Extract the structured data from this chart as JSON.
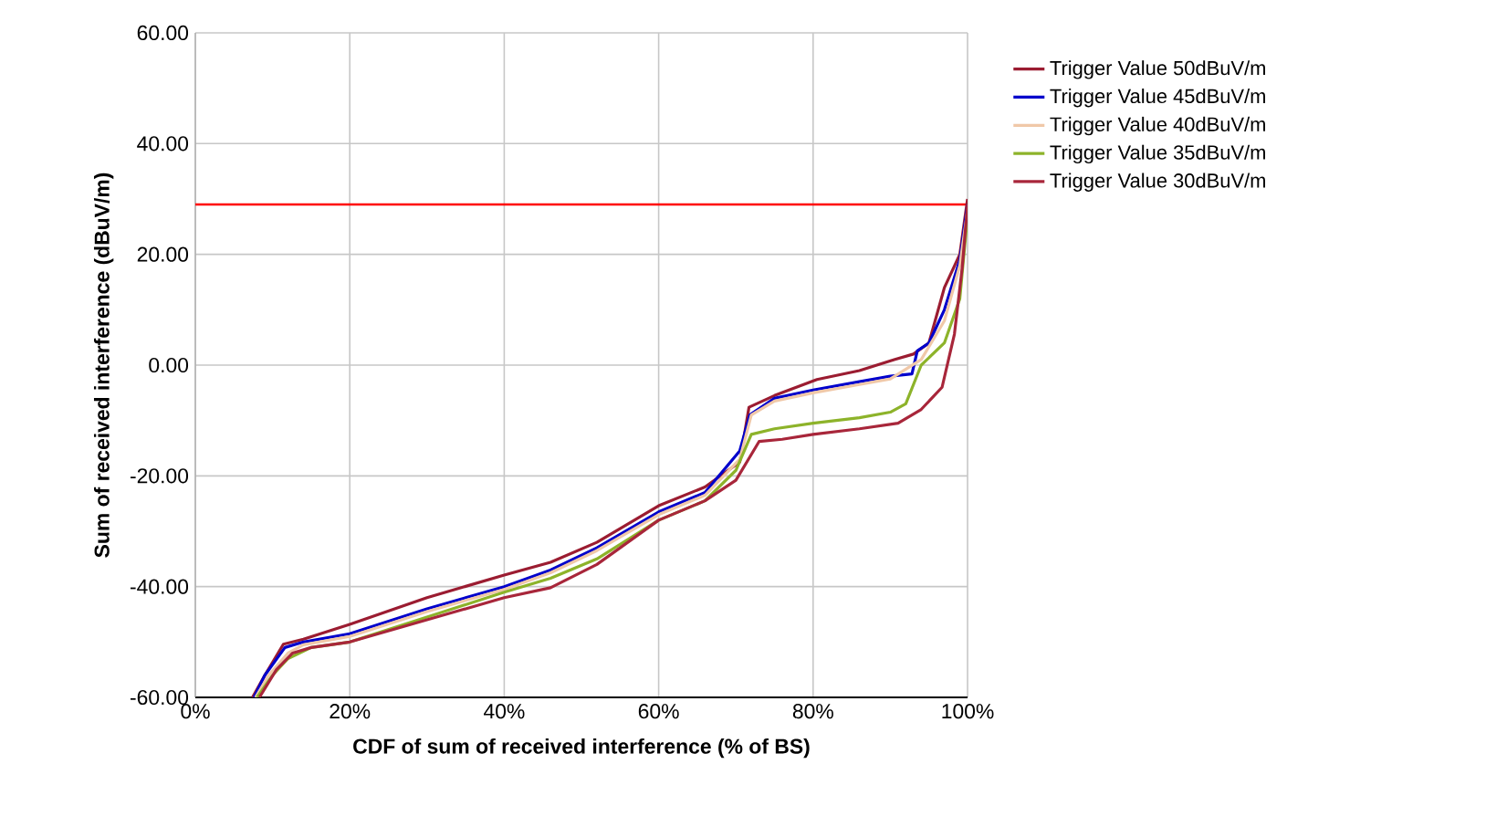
{
  "chart_data": {
    "type": "line",
    "xlabel": "CDF of sum of received interference (% of BS)",
    "ylabel": "Sum of received interference (dBuV/m)",
    "xlim": [
      0,
      100
    ],
    "ylim": [
      -60,
      60
    ],
    "xticks": [
      {
        "value": 0,
        "label": "0%"
      },
      {
        "value": 20,
        "label": "20%"
      },
      {
        "value": 40,
        "label": "40%"
      },
      {
        "value": 60,
        "label": "60%"
      },
      {
        "value": 80,
        "label": "80%"
      },
      {
        "value": 100,
        "label": "100%"
      }
    ],
    "yticks": [
      {
        "value": -60,
        "label": "-60.00"
      },
      {
        "value": -40,
        "label": "-40.00"
      },
      {
        "value": -20,
        "label": "-20.00"
      },
      {
        "value": 0,
        "label": "0.00"
      },
      {
        "value": 20,
        "label": "20.00"
      },
      {
        "value": 40,
        "label": "40.00"
      },
      {
        "value": 60,
        "label": "60.00"
      }
    ],
    "grid": true,
    "legend": "right",
    "marker": "none",
    "line_style": "solid",
    "ref_lines": [
      {
        "axis": "y",
        "value": 29,
        "color": "#ff0000"
      }
    ],
    "series": [
      {
        "name": "Trigger Value 50dBuV/m",
        "color": "#9b1c31",
        "x": [
          7.4,
          9,
          11.4,
          14,
          20,
          30,
          40,
          46,
          52,
          60,
          66,
          70.5,
          71.7,
          75,
          80.5,
          86,
          90.5,
          93,
          95,
          97,
          99,
          100
        ],
        "values": [
          -60,
          -56,
          -50.4,
          -49.5,
          -46.8,
          -42,
          -37.9,
          -35.6,
          -32,
          -25.4,
          -22,
          -17.5,
          -7.6,
          -5.5,
          -2.6,
          -1,
          1,
          2,
          4,
          14,
          20,
          30
        ]
      },
      {
        "name": "Trigger Value 45dBuV/m",
        "color": "#0000cc",
        "x": [
          7.6,
          9,
          11.6,
          14,
          20,
          30,
          40,
          46,
          52,
          60,
          66,
          70.5,
          71.8,
          75,
          80,
          86,
          90,
          92.8,
          93.5,
          95,
          97,
          99,
          100
        ],
        "values": [
          -60,
          -56,
          -51,
          -50,
          -48.5,
          -44,
          -40,
          -37,
          -33,
          -26.5,
          -23,
          -15.5,
          -9,
          -6,
          -4.5,
          -3,
          -2,
          -1.6,
          2.6,
          4,
          10,
          19,
          29
        ]
      },
      {
        "name": "Trigger Value 40dBuV/m",
        "color": "#f0c8a8",
        "x": [
          7.8,
          9.5,
          12,
          14,
          20,
          30,
          40,
          46,
          52,
          60,
          66,
          70.5,
          72,
          75,
          80,
          86,
          90,
          94,
          97,
          99,
          100
        ],
        "values": [
          -60,
          -56,
          -52,
          -50.5,
          -49,
          -44.5,
          -40.5,
          -37.5,
          -33.5,
          -27,
          -23.5,
          -17,
          -9,
          -6.5,
          -5,
          -3.5,
          -2.5,
          1,
          8,
          18,
          28
        ]
      },
      {
        "name": "Trigger Value 35dBuV/m",
        "color": "#8db32a",
        "x": [
          8,
          10,
          12,
          15,
          20,
          30,
          40,
          46,
          52,
          60,
          66,
          70,
          72,
          75,
          80,
          86,
          90,
          92,
          94,
          97,
          99,
          100
        ],
        "values": [
          -60,
          -56,
          -53,
          -51,
          -50,
          -45.5,
          -41,
          -38.5,
          -35,
          -28,
          -24.5,
          -19,
          -12.5,
          -11.5,
          -10.5,
          -9.5,
          -8.5,
          -7,
          0,
          4,
          12,
          27
        ]
      },
      {
        "name": "Trigger Value 30dBuV/m",
        "color": "#a8263a",
        "x": [
          8.3,
          10.5,
          12.6,
          15,
          20,
          30,
          40,
          46,
          52,
          60,
          66,
          70,
          73,
          76,
          80,
          86,
          91,
          94,
          96.7,
          98.3,
          99.3,
          100
        ],
        "values": [
          -60,
          -55,
          -52,
          -51,
          -50,
          -46,
          -42,
          -40.2,
          -36,
          -28,
          -24.5,
          -20.8,
          -13.8,
          -13.4,
          -12.5,
          -11.5,
          -10.5,
          -8,
          -4,
          5.6,
          17.5,
          29
        ]
      }
    ]
  }
}
